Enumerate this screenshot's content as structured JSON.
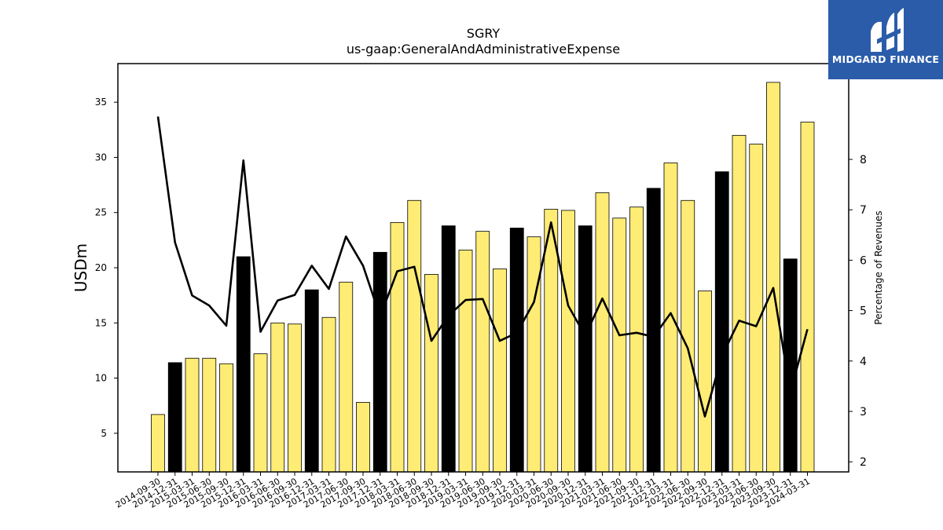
{
  "chart_data": {
    "type": "bar+line",
    "title": "SGRY",
    "subtitle": "us-gaap:GeneralAndAdministrativeExpense",
    "ylabel": "USDm",
    "y2label": "Percentage of Revenues",
    "ylim": [
      1.5,
      38.5
    ],
    "y2lim": [
      1.8,
      9.9
    ],
    "yticks": [
      5,
      10,
      15,
      20,
      25,
      30,
      35
    ],
    "y2ticks": [
      2,
      3,
      4,
      5,
      6,
      7,
      8
    ],
    "categories": [
      "2014-09-30",
      "2014-12-31",
      "2015-03-31",
      "2015-06-30",
      "2015-09-30",
      "2015-12-31",
      "2016-03-31",
      "2016-06-30",
      "2016-09-30",
      "2016-12-31",
      "2017-03-31",
      "2017-06-30",
      "2017-09-30",
      "2017-12-31",
      "2018-03-31",
      "2018-06-30",
      "2018-09-30",
      "2018-12-31",
      "2019-03-31",
      "2019-06-30",
      "2019-09-30",
      "2019-12-31",
      "2020-03-31",
      "2020-06-30",
      "2020-09-30",
      "2020-12-31",
      "2021-03-31",
      "2021-06-30",
      "2021-09-30",
      "2021-12-31",
      "2022-03-31",
      "2022-06-30",
      "2022-09-30",
      "2022-12-31",
      "2023-03-31",
      "2023-06-30",
      "2023-09-30",
      "2023-12-31",
      "2024-03-31"
    ],
    "bars": [
      6.7,
      11.4,
      11.8,
      11.8,
      11.3,
      21.0,
      12.2,
      15.0,
      14.9,
      18.0,
      15.5,
      18.7,
      7.8,
      21.4,
      24.1,
      26.1,
      19.4,
      23.8,
      21.6,
      23.3,
      19.9,
      23.6,
      22.8,
      25.3,
      25.2,
      23.8,
      26.8,
      24.5,
      25.5,
      27.2,
      29.5,
      26.1,
      17.9,
      28.7,
      32.0,
      31.2,
      36.8,
      20.8,
      33.2
    ],
    "bar_highlight": [
      false,
      true,
      false,
      false,
      false,
      true,
      false,
      false,
      false,
      true,
      false,
      false,
      false,
      true,
      false,
      false,
      false,
      true,
      false,
      false,
      false,
      true,
      false,
      false,
      false,
      true,
      false,
      false,
      false,
      true,
      false,
      false,
      false,
      true,
      false,
      false,
      false,
      true,
      false
    ],
    "line_values": [
      8.85,
      6.35,
      5.3,
      5.1,
      4.7,
      7.98,
      4.58,
      5.2,
      5.31,
      5.89,
      5.43,
      6.47,
      5.89,
      4.88,
      5.78,
      5.87,
      4.4,
      4.9,
      5.21,
      5.23,
      4.4,
      4.56,
      5.17,
      6.75,
      5.1,
      4.5,
      5.24,
      4.51,
      4.56,
      4.48,
      4.95,
      4.25,
      2.9,
      4.1,
      4.8,
      4.69,
      5.45,
      3.38,
      4.63
    ],
    "colors": {
      "bar": "#ffec75",
      "bar_highlight": "#000000",
      "line": "#000000"
    },
    "grid": false,
    "legend": "none"
  },
  "brand": {
    "name": "MIDGARD FINANCE",
    "bg": "#2a5caa"
  }
}
